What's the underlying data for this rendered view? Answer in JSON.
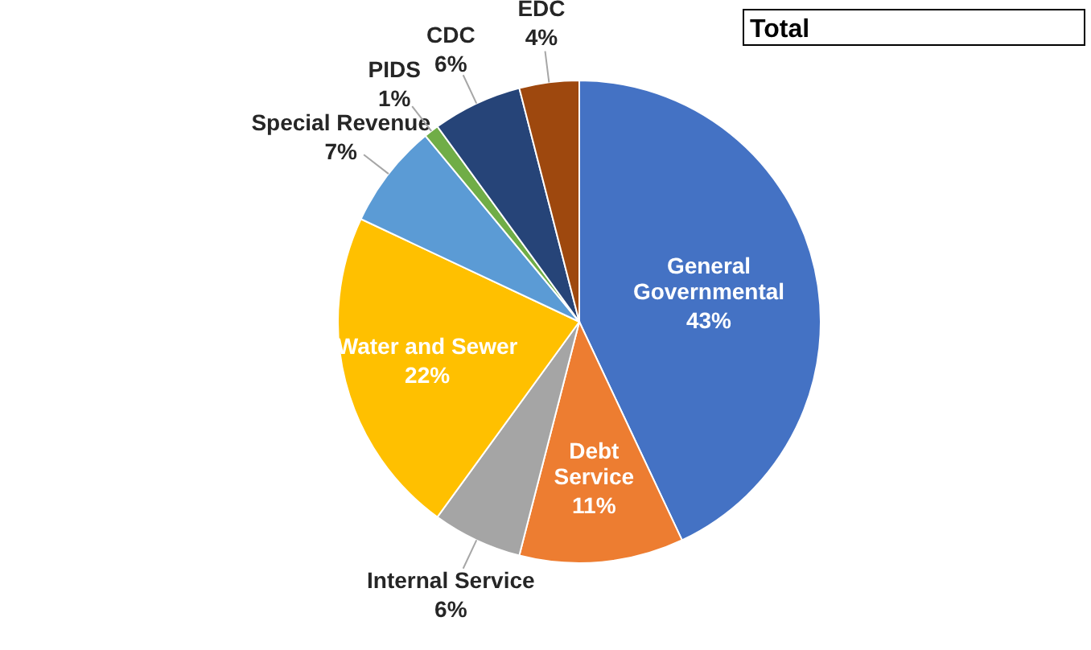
{
  "chart_data": {
    "type": "pie",
    "categories": [
      "General Governmental",
      "Debt Service",
      "Internal Service",
      "Water and Sewer",
      "Special Revenue",
      "PIDS",
      "CDC",
      "EDC"
    ],
    "values": [
      43,
      11,
      6,
      22,
      7,
      1,
      6,
      4
    ],
    "colors": [
      "#4472c4",
      "#ed7d31",
      "#a5a5a5",
      "#ffc000",
      "#5b9bd5",
      "#70ad47",
      "#264478",
      "#9e480e"
    ],
    "value_labels": [
      "43%",
      "11%",
      "6%",
      "22%",
      "7%",
      "1%",
      "6%",
      "4%"
    ],
    "annotations": [
      "Total"
    ]
  }
}
